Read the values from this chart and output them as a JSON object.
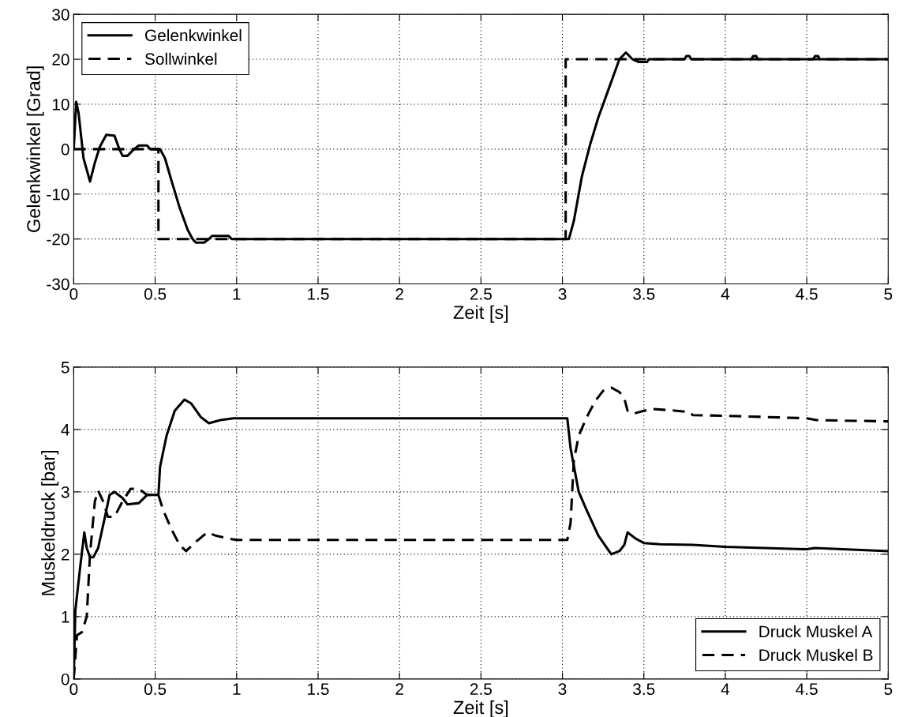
{
  "chart_data": [
    {
      "type": "line",
      "xlabel": "Zeit [s]",
      "ylabel": "Gelenkwinkel [Grad]",
      "xlim": [
        0,
        5
      ],
      "ylim": [
        -30,
        30
      ],
      "xticks": [
        0,
        0.5,
        1,
        1.5,
        2,
        2.5,
        3,
        3.5,
        4,
        4.5,
        5
      ],
      "yticks": [
        -30,
        -20,
        -10,
        0,
        10,
        20,
        30
      ],
      "grid": true,
      "legend": "top left",
      "marker": "none",
      "series": [
        {
          "name": "Gelenkwinkel",
          "color": "#000000",
          "line_style": "solid",
          "x": [
            0,
            0.015,
            0.03,
            0.06,
            0.1,
            0.13,
            0.16,
            0.2,
            0.25,
            0.28,
            0.3,
            0.33,
            0.37,
            0.4,
            0.45,
            0.47,
            0.53,
            0.56,
            0.6,
            0.65,
            0.7,
            0.73,
            0.75,
            0.8,
            0.83,
            0.85,
            0.95,
            0.97,
            3.03,
            3.04,
            3.07,
            3.12,
            3.17,
            3.22,
            3.28,
            3.35,
            3.39,
            3.43,
            3.47,
            3.52,
            3.53,
            3.75,
            3.76,
            3.78,
            3.79,
            4.16,
            4.17,
            4.19,
            4.2,
            4.54,
            4.55,
            4.57,
            4.58,
            5
          ],
          "values": [
            0,
            10.5,
            8,
            -2,
            -7.2,
            -3,
            0.5,
            3.2,
            3,
            0,
            -1.5,
            -1.5,
            0,
            0.8,
            0.8,
            0,
            0,
            -2,
            -7,
            -13,
            -18,
            -20,
            -20.8,
            -20.8,
            -20,
            -19.3,
            -19.3,
            -20,
            -20,
            -20,
            -16,
            -6,
            1,
            7,
            13,
            20,
            21.5,
            20,
            19.4,
            19.4,
            20,
            20,
            20.7,
            20.7,
            20,
            20,
            20.7,
            20.7,
            20,
            20,
            20.7,
            20.7,
            20,
            20
          ]
        },
        {
          "name": "Sollwinkel",
          "color": "#000000",
          "line_style": "dashed",
          "x": [
            0,
            0.52,
            0.52,
            3.02,
            3.02,
            5
          ],
          "values": [
            0,
            0,
            -20,
            -20,
            20,
            20
          ]
        }
      ]
    },
    {
      "type": "line",
      "xlabel": "Zeit [s]",
      "ylabel": "Muskeldruck [bar]",
      "xlim": [
        0,
        5
      ],
      "ylim": [
        0,
        5
      ],
      "xticks": [
        0,
        0.5,
        1,
        1.5,
        2,
        2.5,
        3,
        3.5,
        4,
        4.5,
        5
      ],
      "yticks": [
        0,
        1,
        2,
        3,
        4,
        5
      ],
      "grid": true,
      "legend": "bottom right",
      "marker": "none",
      "series": [
        {
          "name": "Druck Muskel A",
          "color": "#000000",
          "line_style": "solid",
          "x": [
            0,
            0.01,
            0.04,
            0.065,
            0.08,
            0.1,
            0.12,
            0.15,
            0.2,
            0.22,
            0.25,
            0.3,
            0.33,
            0.4,
            0.45,
            0.52,
            0.53,
            0.57,
            0.62,
            0.68,
            0.72,
            0.78,
            0.83,
            0.9,
            0.98,
            3.03,
            3.05,
            3.1,
            3.15,
            3.22,
            3.3,
            3.35,
            3.38,
            3.4,
            3.45,
            3.5,
            3.6,
            3.8,
            4,
            4.5,
            4.55,
            5
          ],
          "values": [
            0,
            1.1,
            1.8,
            2.35,
            2.1,
            1.95,
            1.95,
            2.1,
            2.7,
            2.95,
            3.0,
            2.9,
            2.8,
            2.82,
            2.95,
            2.95,
            3.4,
            3.9,
            4.3,
            4.48,
            4.42,
            4.2,
            4.1,
            4.15,
            4.18,
            4.18,
            3.7,
            3.0,
            2.7,
            2.3,
            2.0,
            2.05,
            2.15,
            2.35,
            2.25,
            2.18,
            2.16,
            2.15,
            2.12,
            2.08,
            2.1,
            2.05
          ]
        },
        {
          "name": "Druck Muskel B",
          "color": "#000000",
          "line_style": "dashed",
          "x": [
            0,
            0.02,
            0.05,
            0.08,
            0.1,
            0.13,
            0.15,
            0.18,
            0.21,
            0.25,
            0.3,
            0.35,
            0.4,
            0.45,
            0.52,
            0.55,
            0.6,
            0.65,
            0.69,
            0.75,
            0.82,
            0.87,
            0.95,
            1.0,
            3.03,
            3.05,
            3.07,
            3.1,
            3.15,
            3.2,
            3.25,
            3.3,
            3.35,
            3.38,
            3.4,
            3.43,
            3.5,
            3.55,
            3.7,
            3.78,
            3.8,
            4.0,
            4.5,
            4.56,
            5
          ],
          "values": [
            0,
            0.7,
            0.75,
            1.0,
            2.0,
            2.85,
            3.02,
            2.85,
            2.6,
            2.6,
            2.85,
            3.05,
            3.05,
            2.95,
            2.95,
            2.7,
            2.4,
            2.15,
            2.05,
            2.2,
            2.35,
            2.3,
            2.25,
            2.23,
            2.23,
            2.5,
            3.5,
            3.9,
            4.2,
            4.45,
            4.62,
            4.67,
            4.6,
            4.5,
            4.3,
            4.25,
            4.3,
            4.33,
            4.3,
            4.28,
            4.23,
            4.22,
            4.18,
            4.15,
            4.13
          ]
        }
      ]
    }
  ]
}
